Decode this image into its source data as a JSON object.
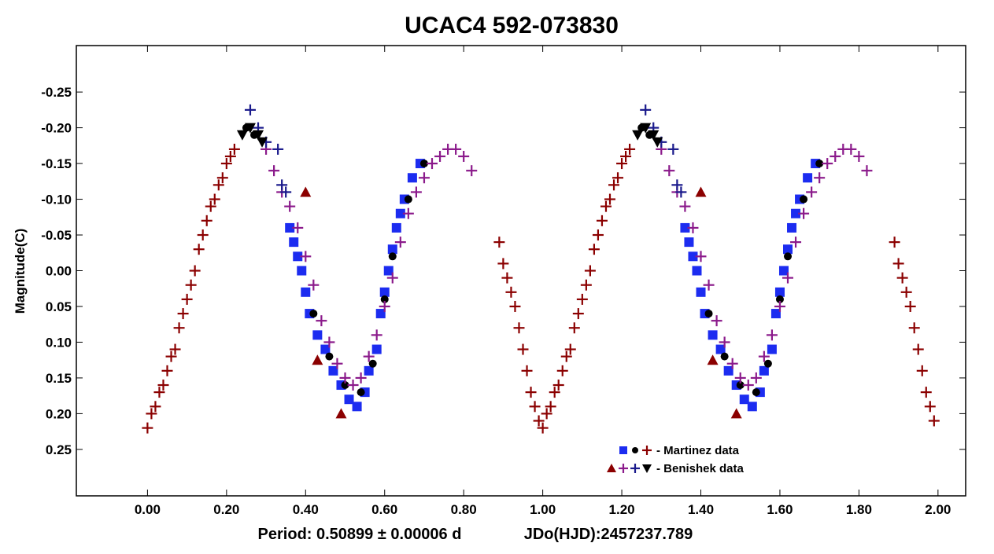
{
  "chart_data": {
    "type": "scatter",
    "title": "UCAC4 592-073830",
    "xlabel": "",
    "ylabel": "Magnitude(C)",
    "x_label_text": "Period: 0.50899 ± 0.00006 d",
    "epoch_text": "JDo(HJD):2457237.789",
    "xlim": [
      -0.18,
      2.07
    ],
    "ylim": [
      0.315,
      -0.315
    ],
    "y_inverted": true,
    "grid": false,
    "legend_position": "bottom-right",
    "x_ticks": [
      0.0,
      0.2,
      0.4,
      0.6,
      0.8,
      1.0,
      1.2,
      1.4,
      1.6,
      1.8,
      2.0
    ],
    "x_tick_labels": [
      "0.00",
      "0.20",
      "0.40",
      "0.60",
      "0.80",
      "1.00",
      "1.20",
      "1.40",
      "1.60",
      "1.80",
      "2.00"
    ],
    "y_ticks": [
      -0.25,
      -0.2,
      -0.15,
      -0.1,
      -0.05,
      0.0,
      0.05,
      0.1,
      0.15,
      0.2,
      0.25
    ],
    "y_tick_labels": [
      "-0.25",
      "-0.20",
      "-0.15",
      "-0.10",
      "-0.05",
      "0.00",
      "0.05",
      "0.10",
      "0.15",
      "0.20",
      "0.25"
    ],
    "legend": [
      {
        "label": "- Martinez data",
        "symbols": [
          {
            "marker": "square",
            "color": "#1c2cf0"
          },
          {
            "marker": "circle",
            "color": "#000000"
          },
          {
            "marker": "plus",
            "color": "#8b0000"
          }
        ]
      },
      {
        "label": "- Benishek data",
        "symbols": [
          {
            "marker": "triangle-up",
            "color": "#8b0000"
          },
          {
            "marker": "plus",
            "color": "#8b1a8b"
          },
          {
            "marker": "plus",
            "color": "#1a1a8c"
          },
          {
            "marker": "triangle-down",
            "color": "#000000"
          }
        ]
      }
    ],
    "phase_repeat": 1.0,
    "series": [
      {
        "marker": "plus",
        "color": "#8b0000",
        "points": [
          [
            0.0,
            0.22
          ],
          [
            0.01,
            0.2
          ],
          [
            0.02,
            0.19
          ],
          [
            0.03,
            0.17
          ],
          [
            0.04,
            0.16
          ],
          [
            0.05,
            0.14
          ],
          [
            0.06,
            0.12
          ],
          [
            0.07,
            0.11
          ],
          [
            0.08,
            0.08
          ],
          [
            0.09,
            0.06
          ],
          [
            0.1,
            0.04
          ],
          [
            0.11,
            0.02
          ],
          [
            0.12,
            0.0
          ],
          [
            0.13,
            -0.03
          ],
          [
            0.14,
            -0.05
          ],
          [
            0.15,
            -0.07
          ],
          [
            0.16,
            -0.09
          ],
          [
            0.17,
            -0.1
          ],
          [
            0.18,
            -0.12
          ],
          [
            0.19,
            -0.13
          ],
          [
            0.2,
            -0.15
          ],
          [
            0.21,
            -0.16
          ],
          [
            0.22,
            -0.17
          ],
          [
            0.89,
            -0.04
          ],
          [
            0.9,
            -0.01
          ],
          [
            0.91,
            0.01
          ],
          [
            0.92,
            0.03
          ],
          [
            0.93,
            0.05
          ],
          [
            0.94,
            0.08
          ],
          [
            0.95,
            0.11
          ],
          [
            0.96,
            0.14
          ],
          [
            0.97,
            0.17
          ],
          [
            0.98,
            0.19
          ],
          [
            0.99,
            0.21
          ]
        ]
      },
      {
        "marker": "square",
        "color": "#1c2cf0",
        "points": [
          [
            0.36,
            -0.06
          ],
          [
            0.37,
            -0.04
          ],
          [
            0.38,
            -0.02
          ],
          [
            0.39,
            0.0
          ],
          [
            0.4,
            0.03
          ],
          [
            0.41,
            0.06
          ],
          [
            0.43,
            0.09
          ],
          [
            0.45,
            0.11
          ],
          [
            0.47,
            0.14
          ],
          [
            0.49,
            0.16
          ],
          [
            0.51,
            0.18
          ],
          [
            0.53,
            0.19
          ],
          [
            0.55,
            0.17
          ],
          [
            0.56,
            0.14
          ],
          [
            0.58,
            0.11
          ],
          [
            0.59,
            0.06
          ],
          [
            0.6,
            0.03
          ],
          [
            0.61,
            0.0
          ],
          [
            0.62,
            -0.03
          ],
          [
            0.63,
            -0.06
          ],
          [
            0.64,
            -0.08
          ],
          [
            0.65,
            -0.1
          ],
          [
            0.67,
            -0.13
          ],
          [
            0.69,
            -0.15
          ]
        ]
      },
      {
        "marker": "circle",
        "color": "#000000",
        "points": [
          [
            0.25,
            -0.2
          ],
          [
            0.27,
            -0.19
          ],
          [
            0.42,
            0.06
          ],
          [
            0.46,
            0.12
          ],
          [
            0.5,
            0.16
          ],
          [
            0.54,
            0.17
          ],
          [
            0.57,
            0.13
          ],
          [
            0.6,
            0.04
          ],
          [
            0.62,
            -0.02
          ],
          [
            0.66,
            -0.1
          ],
          [
            0.7,
            -0.15
          ]
        ]
      },
      {
        "marker": "plus",
        "color": "#8b1a8b",
        "points": [
          [
            0.3,
            -0.17
          ],
          [
            0.32,
            -0.14
          ],
          [
            0.34,
            -0.11
          ],
          [
            0.36,
            -0.09
          ],
          [
            0.38,
            -0.06
          ],
          [
            0.4,
            -0.02
          ],
          [
            0.42,
            0.02
          ],
          [
            0.44,
            0.07
          ],
          [
            0.46,
            0.1
          ],
          [
            0.48,
            0.13
          ],
          [
            0.5,
            0.15
          ],
          [
            0.52,
            0.16
          ],
          [
            0.54,
            0.15
          ],
          [
            0.56,
            0.12
          ],
          [
            0.58,
            0.09
          ],
          [
            0.6,
            0.05
          ],
          [
            0.62,
            0.01
          ],
          [
            0.64,
            -0.04
          ],
          [
            0.66,
            -0.08
          ],
          [
            0.68,
            -0.11
          ],
          [
            0.7,
            -0.13
          ],
          [
            0.72,
            -0.15
          ],
          [
            0.74,
            -0.16
          ],
          [
            0.76,
            -0.17
          ],
          [
            0.78,
            -0.17
          ],
          [
            0.8,
            -0.16
          ],
          [
            0.82,
            -0.14
          ]
        ]
      },
      {
        "marker": "plus",
        "color": "#1a1a8c",
        "points": [
          [
            0.26,
            -0.225
          ],
          [
            0.28,
            -0.2
          ],
          [
            0.3,
            -0.18
          ],
          [
            0.33,
            -0.17
          ],
          [
            0.34,
            -0.12
          ],
          [
            0.35,
            -0.11
          ]
        ]
      },
      {
        "marker": "triangle-down",
        "color": "#000000",
        "points": [
          [
            0.24,
            -0.19
          ],
          [
            0.26,
            -0.2
          ],
          [
            0.28,
            -0.19
          ],
          [
            0.29,
            -0.18
          ]
        ]
      },
      {
        "marker": "triangle-up",
        "color": "#8b0000",
        "points": [
          [
            0.4,
            -0.11
          ],
          [
            0.43,
            0.125
          ],
          [
            0.49,
            0.2
          ]
        ]
      }
    ]
  }
}
